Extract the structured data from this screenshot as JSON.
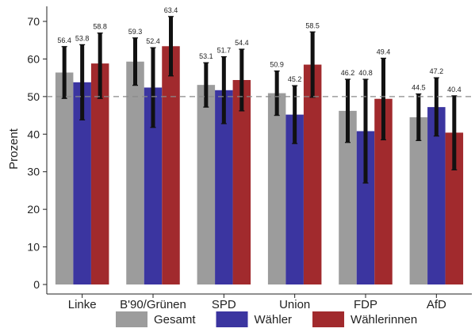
{
  "chart_data": {
    "type": "bar",
    "title": "",
    "xlabel": "",
    "ylabel": "Prozent",
    "ylim": [
      0,
      70
    ],
    "yticks": [
      0,
      10,
      20,
      30,
      40,
      50,
      60,
      70
    ],
    "grid": false,
    "reference_line": 50,
    "legend_position": "bottom",
    "categories": [
      "Linke",
      "B'90/Grünen",
      "SPD",
      "Union",
      "FDP",
      "AfD"
    ],
    "series": [
      {
        "name": "Gesamt",
        "color": "#9c9c9c",
        "values": [
          56.4,
          59.3,
          53.1,
          50.9,
          46.2,
          44.5
        ],
        "labels": [
          "56.4",
          "59.3",
          "53.1",
          "50.9",
          "46.2",
          "44.5"
        ],
        "ci_low": [
          49.5,
          53.0,
          47.2,
          45.0,
          37.8,
          38.3
        ],
        "ci_high": [
          63.3,
          65.6,
          59.0,
          56.8,
          54.6,
          50.7
        ]
      },
      {
        "name": "Wähler",
        "color": "#3b35a0",
        "values": [
          53.8,
          52.4,
          51.7,
          45.2,
          40.8,
          47.2
        ],
        "labels": [
          "53.8",
          "52.4",
          "51.7",
          "45.2",
          "40.8",
          "47.2"
        ],
        "ci_low": [
          43.8,
          41.8,
          42.8,
          37.5,
          27.0,
          39.5
        ],
        "ci_high": [
          63.8,
          63.0,
          60.6,
          52.9,
          54.6,
          55.0
        ]
      },
      {
        "name": "Wählerinnen",
        "color": "#a12a2d",
        "values": [
          58.8,
          63.4,
          54.4,
          58.5,
          49.4,
          40.4
        ],
        "labels": [
          "58.8",
          "63.4",
          "54.4",
          "58.5",
          "49.4",
          "40.4"
        ],
        "ci_low": [
          49.5,
          55.5,
          46.2,
          49.8,
          38.5,
          30.5
        ],
        "ci_high": [
          66.9,
          71.3,
          62.6,
          67.2,
          60.2,
          50.2
        ]
      }
    ]
  }
}
